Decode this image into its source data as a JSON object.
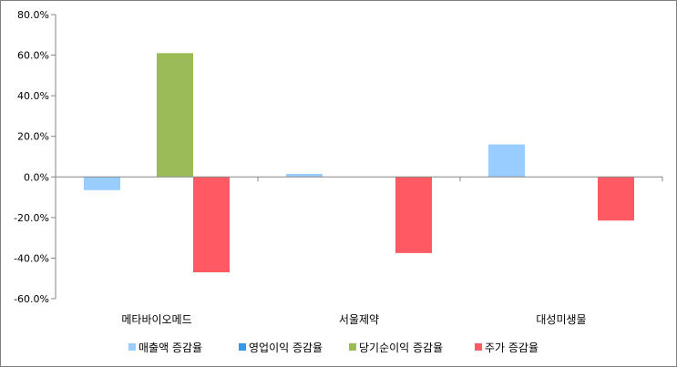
{
  "chart_data": {
    "type": "bar",
    "title": "",
    "xlabel": "",
    "ylabel": "",
    "categories": [
      "메타바이오메드",
      "서울제약",
      "대성미생물"
    ],
    "y_ticks": [
      "80.0%",
      "60.0%",
      "40.0%",
      "20.0%",
      "0.0%",
      "-20.0%",
      "-40.0%",
      "-60.0%"
    ],
    "ylim": [
      -60,
      80
    ],
    "grid": false,
    "legend_position": "bottom",
    "series": [
      {
        "name": "매출액 증감율",
        "color": "#99ccff",
        "values": [
          -6.5,
          1.5,
          16
        ]
      },
      {
        "name": "영업이익 증감율",
        "color": "#3399ee",
        "values": [
          0,
          0,
          0
        ]
      },
      {
        "name": "당기순이익 증감율",
        "color": "#9bbb59",
        "values": [
          61,
          0,
          0
        ]
      },
      {
        "name": "주가 증감율",
        "color": "#ff5a64",
        "values": [
          -47,
          -37.5,
          -21.5
        ]
      }
    ]
  }
}
